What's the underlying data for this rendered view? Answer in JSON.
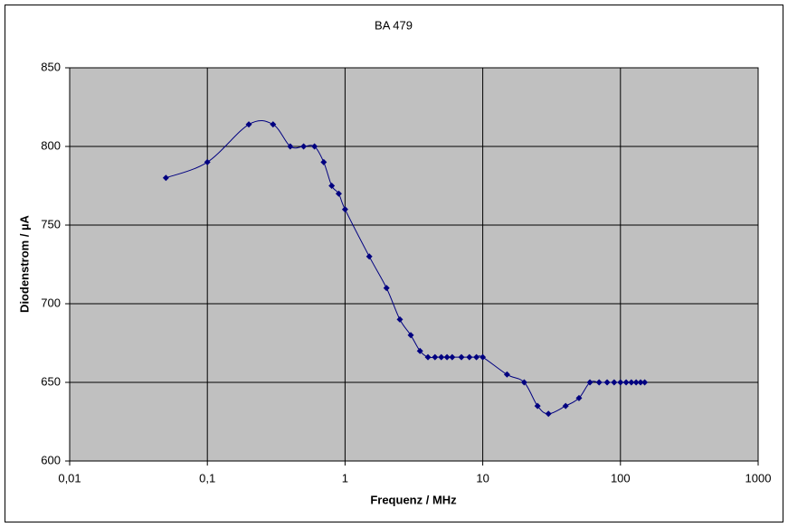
{
  "chart_data": {
    "type": "line",
    "title": "BA 479",
    "xlabel": "Frequenz / MHz",
    "ylabel": "Diodenstrom / µA",
    "x": [
      0.05,
      0.1,
      0.2,
      0.3,
      0.4,
      0.5,
      0.6,
      0.7,
      0.8,
      0.9,
      1,
      1.5,
      2,
      2.5,
      3,
      3.5,
      4,
      4.5,
      5,
      5.5,
      6,
      7,
      8,
      9,
      10,
      15,
      20,
      25,
      30,
      40,
      50,
      60,
      70,
      80,
      90,
      100,
      110,
      120,
      130,
      140,
      150
    ],
    "series": [
      {
        "color": "#000080",
        "values": [
          780,
          790,
          814,
          814,
          800,
          800,
          800,
          790,
          775,
          770,
          760,
          730,
          710,
          690,
          680,
          670,
          666,
          666,
          666,
          666,
          666,
          666,
          666,
          666,
          666,
          655,
          650,
          635,
          630,
          635,
          640,
          650,
          650,
          650,
          650,
          650,
          650,
          650,
          650,
          650,
          650
        ]
      }
    ],
    "xscale": "log",
    "xlim": [
      0.01,
      1000
    ],
    "xticks": [
      {
        "value": 0.01,
        "label": "0,01"
      },
      {
        "value": 0.1,
        "label": "0,1"
      },
      1,
      10,
      100,
      1000
    ],
    "ylim": [
      600,
      850
    ],
    "yticks": [
      600,
      650,
      700,
      750,
      800,
      850
    ],
    "grid": true,
    "plot_background": "#c0c0c0",
    "smooth": true
  }
}
